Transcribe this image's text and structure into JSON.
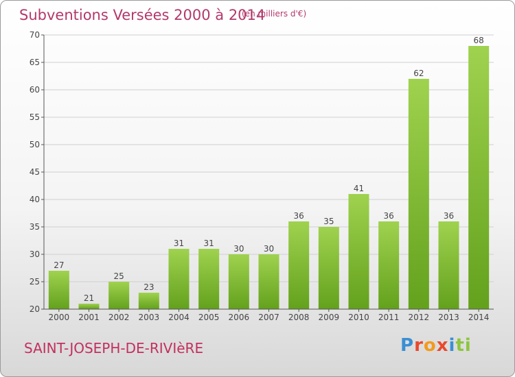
{
  "header": {
    "title": "Subventions Versées 2000 à 2014",
    "unit": "(en milliers d'€)"
  },
  "footer": {
    "commune": "SAINT-JOSEPH-DE-RIVIèRE",
    "logo_text": "Proxiti"
  },
  "colors": {
    "bar_top": "#9fd24f",
    "bar_bottom": "#63a11c",
    "title": "#b3386b",
    "grid": "#cfcfcf"
  },
  "chart_data": {
    "type": "bar",
    "title": "Subventions Versées 2000 à 2014",
    "subtitle": "(en milliers d'€)",
    "categories": [
      "2000",
      "2001",
      "2002",
      "2003",
      "2004",
      "2005",
      "2006",
      "2007",
      "2008",
      "2009",
      "2010",
      "2011",
      "2012",
      "2013",
      "2014"
    ],
    "values": [
      27,
      21,
      25,
      23,
      31,
      31,
      30,
      30,
      36,
      35,
      41,
      36,
      62,
      36,
      68
    ],
    "ylim": [
      20,
      70
    ],
    "yticks": [
      20,
      25,
      30,
      35,
      40,
      45,
      50,
      55,
      60,
      65,
      70
    ],
    "grid": true,
    "data_labels": true
  }
}
